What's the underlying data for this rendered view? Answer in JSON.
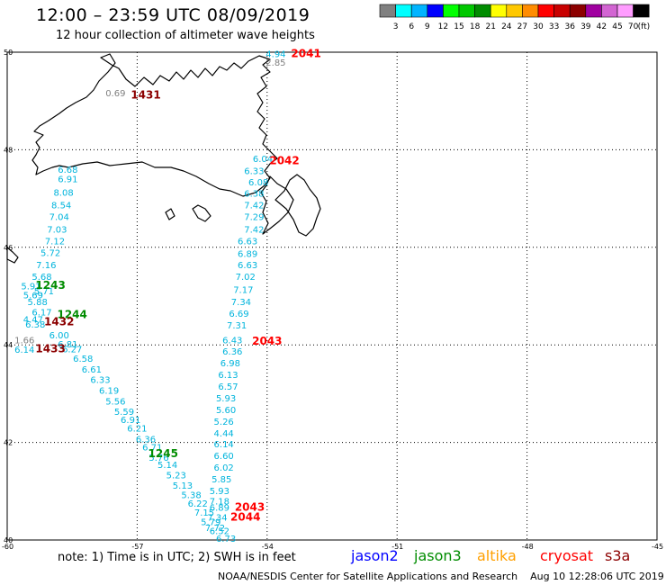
{
  "header": {
    "title": "12:00 – 23:59 UTC 08/09/2019",
    "subtitle": "12 hour collection of altimeter wave heights"
  },
  "color_scale": {
    "labels": [
      "3",
      "6",
      "9",
      "12",
      "15",
      "18",
      "21",
      "24",
      "27",
      "30",
      "33",
      "36",
      "39",
      "42",
      "45",
      "70"
    ],
    "unit": "(ft)",
    "colors": [
      "#808080",
      "#00ffff",
      "#00b4ff",
      "#0000ff",
      "#00ff00",
      "#00c800",
      "#008c00",
      "#ffff00",
      "#ffc800",
      "#ff8c00",
      "#ff0000",
      "#c80000",
      "#8c0000",
      "#a000a0",
      "#d264d2",
      "#ff9cff",
      "#000000"
    ]
  },
  "map": {
    "lat_labels": [
      "50",
      "48",
      "46",
      "44",
      "42",
      "40"
    ],
    "lon_labels": [
      "-60",
      "-57",
      "-54",
      "-51",
      "-48",
      "-45"
    ],
    "time_labels": [
      {
        "text": "2041",
        "color": "#ff0000",
        "lon": -53.1,
        "lat": 49.9
      },
      {
        "text": "1431",
        "color": "#8c0000",
        "lon": -56.8,
        "lat": 49.05
      },
      {
        "text": "2042",
        "color": "#ff0000",
        "lon": -53.6,
        "lat": 47.7
      },
      {
        "text": "1243",
        "color": "#008c00",
        "lon": -59.0,
        "lat": 45.15
      },
      {
        "text": "1244",
        "color": "#008c00",
        "lon": -58.5,
        "lat": 44.55
      },
      {
        "text": "1432",
        "color": "#8c0000",
        "lon": -58.8,
        "lat": 44.4
      },
      {
        "text": "1433",
        "color": "#8c0000",
        "lon": -59.0,
        "lat": 43.85
      },
      {
        "text": "2043",
        "color": "#ff0000",
        "lon": -54.0,
        "lat": 44.0
      },
      {
        "text": "1245",
        "color": "#008c00",
        "lon": -56.4,
        "lat": 41.7
      },
      {
        "text": "2043",
        "color": "#ff0000",
        "lon": -54.4,
        "lat": 40.6
      },
      {
        "text": "2044",
        "color": "#ff0000",
        "lon": -54.5,
        "lat": 40.4
      }
    ],
    "track_cyan": [
      {
        "v": "4.94",
        "lon": -53.8,
        "lat": 49.9
      },
      {
        "v": "6.68",
        "lon": -58.6,
        "lat": 47.53
      },
      {
        "v": "6.91",
        "lon": -58.6,
        "lat": 47.33
      },
      {
        "v": "8.08",
        "lon": -58.7,
        "lat": 47.06
      },
      {
        "v": "8.54",
        "lon": -58.75,
        "lat": 46.8
      },
      {
        "v": "7.04",
        "lon": -58.8,
        "lat": 46.56
      },
      {
        "v": "7.03",
        "lon": -58.85,
        "lat": 46.3
      },
      {
        "v": "7.12",
        "lon": -58.9,
        "lat": 46.06
      },
      {
        "v": "5.72",
        "lon": -59.0,
        "lat": 45.82
      },
      {
        "v": "7.16",
        "lon": -59.1,
        "lat": 45.57
      },
      {
        "v": "5.68",
        "lon": -59.2,
        "lat": 45.33
      },
      {
        "v": "5.91",
        "lon": -59.45,
        "lat": 45.14
      },
      {
        "v": "5.71",
        "lon": -59.15,
        "lat": 45.04
      },
      {
        "v": "5.69",
        "lon": -59.4,
        "lat": 44.95
      },
      {
        "v": "5.88",
        "lon": -59.3,
        "lat": 44.82
      },
      {
        "v": "6.17",
        "lon": -59.2,
        "lat": 44.6
      },
      {
        "v": "4.47",
        "lon": -59.4,
        "lat": 44.46
      },
      {
        "v": "6.38",
        "lon": -59.35,
        "lat": 44.35
      },
      {
        "v": "6.00",
        "lon": -58.8,
        "lat": 44.13
      },
      {
        "v": "6.14",
        "lon": -59.6,
        "lat": 43.84
      },
      {
        "v": "6.81",
        "lon": -58.6,
        "lat": 43.95
      },
      {
        "v": "6.27",
        "lon": -58.5,
        "lat": 43.85
      },
      {
        "v": "6.58",
        "lon": -58.25,
        "lat": 43.65
      },
      {
        "v": "6.61",
        "lon": -58.05,
        "lat": 43.43
      },
      {
        "v": "6.33",
        "lon": -57.85,
        "lat": 43.22
      },
      {
        "v": "6.19",
        "lon": -57.65,
        "lat": 43.0
      },
      {
        "v": "5.56",
        "lon": -57.5,
        "lat": 42.78
      },
      {
        "v": "5.59",
        "lon": -57.3,
        "lat": 42.56
      },
      {
        "v": "6.91",
        "lon": -57.15,
        "lat": 42.4
      },
      {
        "v": "6.21",
        "lon": -57.0,
        "lat": 42.22
      },
      {
        "v": "6.36",
        "lon": -56.8,
        "lat": 42.0
      },
      {
        "v": "6.71",
        "lon": -56.65,
        "lat": 41.84
      },
      {
        "v": "5.76",
        "lon": -56.5,
        "lat": 41.62
      },
      {
        "v": "5.14",
        "lon": -56.3,
        "lat": 41.48
      },
      {
        "v": "5.23",
        "lon": -56.1,
        "lat": 41.26
      },
      {
        "v": "5.13",
        "lon": -55.95,
        "lat": 41.05
      },
      {
        "v": "5.38",
        "lon": -55.75,
        "lat": 40.86
      },
      {
        "v": "6.22",
        "lon": -55.6,
        "lat": 40.68
      },
      {
        "v": "7.15",
        "lon": -55.45,
        "lat": 40.5
      },
      {
        "v": "5.79",
        "lon": -55.3,
        "lat": 40.3
      },
      {
        "v": "6.52",
        "lon": -55.1,
        "lat": 40.12
      },
      {
        "v": "6.73",
        "lon": -54.95,
        "lat": 39.96
      },
      {
        "v": "6.04",
        "lon": -54.1,
        "lat": 47.75
      },
      {
        "v": "6.33",
        "lon": -54.3,
        "lat": 47.5
      },
      {
        "v": "6.08",
        "lon": -54.2,
        "lat": 47.27
      },
      {
        "v": "6.38",
        "lon": -54.3,
        "lat": 47.04
      },
      {
        "v": "7.42",
        "lon": -54.3,
        "lat": 46.8
      },
      {
        "v": "7.29",
        "lon": -54.3,
        "lat": 46.56
      },
      {
        "v": "7.42",
        "lon": -54.3,
        "lat": 46.3
      },
      {
        "v": "6.63",
        "lon": -54.45,
        "lat": 46.06
      },
      {
        "v": "6.89",
        "lon": -54.45,
        "lat": 45.8
      },
      {
        "v": "6.63",
        "lon": -54.45,
        "lat": 45.57
      },
      {
        "v": "7.02",
        "lon": -54.5,
        "lat": 45.33
      },
      {
        "v": "7.17",
        "lon": -54.55,
        "lat": 45.06
      },
      {
        "v": "7.34",
        "lon": -54.6,
        "lat": 44.82
      },
      {
        "v": "6.69",
        "lon": -54.65,
        "lat": 44.58
      },
      {
        "v": "7.31",
        "lon": -54.7,
        "lat": 44.34
      },
      {
        "v": "6.43",
        "lon": -54.8,
        "lat": 44.03
      },
      {
        "v": "6.36",
        "lon": -54.8,
        "lat": 43.8
      },
      {
        "v": "6.98",
        "lon": -54.85,
        "lat": 43.56
      },
      {
        "v": "6.13",
        "lon": -54.9,
        "lat": 43.32
      },
      {
        "v": "6.57",
        "lon": -54.9,
        "lat": 43.08
      },
      {
        "v": "5.93",
        "lon": -54.95,
        "lat": 42.84
      },
      {
        "v": "5.60",
        "lon": -54.95,
        "lat": 42.6
      },
      {
        "v": "5.26",
        "lon": -55.0,
        "lat": 42.36
      },
      {
        "v": "4.44",
        "lon": -55.0,
        "lat": 42.12
      },
      {
        "v": "6.14",
        "lon": -55.0,
        "lat": 41.9
      },
      {
        "v": "6.60",
        "lon": -55.0,
        "lat": 41.66
      },
      {
        "v": "6.02",
        "lon": -55.0,
        "lat": 41.42
      },
      {
        "v": "5.85",
        "lon": -55.05,
        "lat": 41.18
      },
      {
        "v": "5.93",
        "lon": -55.1,
        "lat": 40.94
      },
      {
        "v": "7.18",
        "lon": -55.1,
        "lat": 40.73
      },
      {
        "v": "6.89",
        "lon": -55.1,
        "lat": 40.6
      },
      {
        "v": "7.34",
        "lon": -55.15,
        "lat": 40.4
      },
      {
        "v": "7.72",
        "lon": -55.2,
        "lat": 40.18
      }
    ],
    "track_gray": [
      {
        "v": "2.85",
        "lon": -53.8,
        "lat": 49.72
      },
      {
        "v": "0.69",
        "lon": -57.5,
        "lat": 49.1
      },
      {
        "v": "1.66",
        "lon": -59.6,
        "lat": 44.03
      }
    ]
  },
  "footer": {
    "note": "note: 1) Time is in UTC; 2) SWH is in feet",
    "missions": [
      {
        "name": "jason2",
        "color": "#0000ff"
      },
      {
        "name": "jason3",
        "color": "#008c00"
      },
      {
        "name": "altika",
        "color": "#ffa000"
      },
      {
        "name": "cryosat",
        "color": "#ff0000"
      },
      {
        "name": "s3a",
        "color": "#8c0000"
      }
    ],
    "credit": "NOAA/NESDIS Center for Satellite Applications and Research",
    "timestamp": "Aug 10 12:28:06 UTC 2019"
  }
}
